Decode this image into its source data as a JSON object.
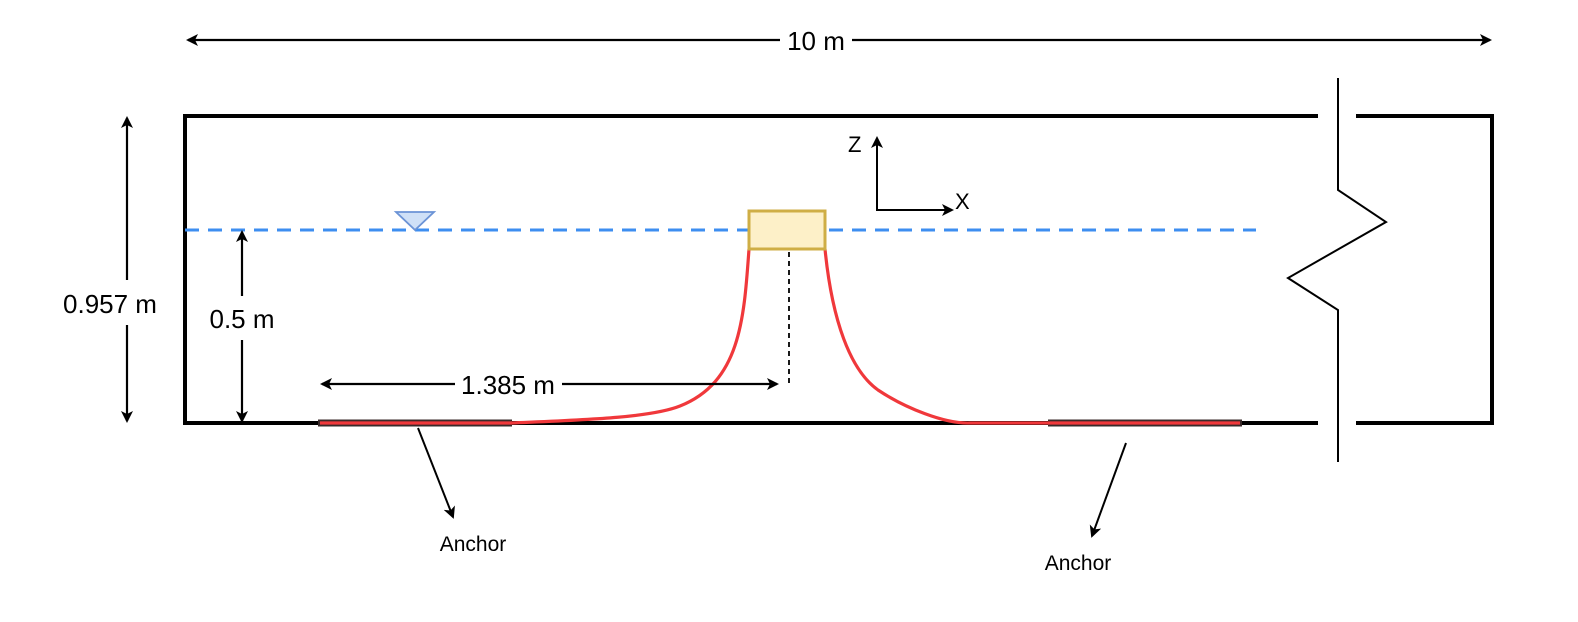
{
  "dimensions": {
    "tank_length": "10 m",
    "tank_depth": "0.957 m",
    "water_depth": "0.5 m",
    "anchor_spacing": "1.385 m"
  },
  "axes": {
    "z_label": "Z",
    "x_label": "X"
  },
  "annotations": {
    "anchor_left": "Anchor",
    "anchor_right": "Anchor"
  },
  "colors": {
    "tank_wall": "#000000",
    "water_line": "#3d8ef0",
    "water_marker_fill": "#cfe0f7",
    "water_marker_stroke": "#6b93d6",
    "mooring_line": "#f0383b",
    "body_fill": "#fdf0c8",
    "body_stroke": "#cfae45",
    "anchor_bar": "#3a2a2a"
  }
}
